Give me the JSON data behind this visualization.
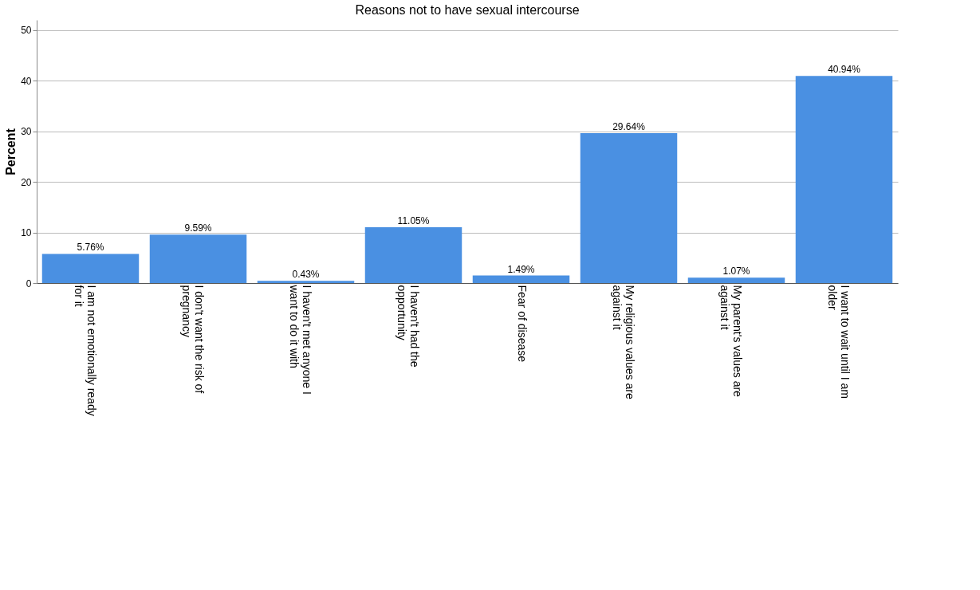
{
  "chart_data": {
    "type": "bar",
    "title": "Reasons not to have sexual intercourse",
    "ylabel": "Percent",
    "categories": [
      "I am not emotionally ready for it",
      "I don't want the risk of pregnancy",
      "I haven't met anyone I want to do it with",
      "I haven't had the opportunity",
      "Fear of disease",
      "My religious values are against it",
      "My parent's values are against it",
      "I want to wait until I am older"
    ],
    "values": [
      5.76,
      9.59,
      0.43,
      11.05,
      1.49,
      29.64,
      1.07,
      40.94
    ],
    "value_labels": [
      "5.76%",
      "9.59%",
      "0.43%",
      "11.05%",
      "1.49%",
      "29.64%",
      "1.07%",
      "40.94%"
    ],
    "color": "#4a90e2",
    "ylim": [
      0,
      52
    ],
    "yticks": [
      0,
      10,
      20,
      30,
      40,
      50
    ],
    "grid": "y"
  }
}
